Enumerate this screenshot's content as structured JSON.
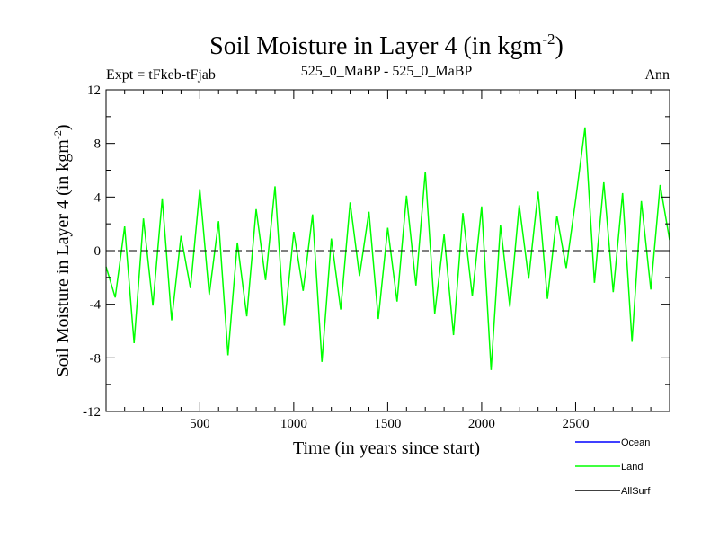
{
  "chart_data": {
    "type": "line",
    "title": "Soil Moisture in Layer 4 (in kgm",
    "title_superscript": "-2",
    "title_suffix": ")",
    "subtitle_left": "Expt = tFkeb-tFjab",
    "subtitle_center": "525_0_MaBP - 525_0_MaBP",
    "subtitle_right": "Ann",
    "xlabel": "Time (in years since start)",
    "ylabel": "Soil Moisture in Layer 4 (in kgm",
    "ylabel_superscript": "-2",
    "ylabel_suffix": ")",
    "xlim": [
      1,
      3000
    ],
    "ylim": [
      -12,
      12
    ],
    "x_ticks": [
      500,
      1000,
      1500,
      2000,
      2500
    ],
    "x_tick_labels": [
      "500",
      "1000",
      "1500",
      "2000",
      "2500"
    ],
    "y_ticks": [
      -12,
      -8,
      -4,
      0,
      4,
      8,
      12
    ],
    "y_tick_labels": [
      "-12",
      "-8",
      "-4",
      "0",
      "4",
      "8",
      "12"
    ],
    "zero_line": {
      "y": 0,
      "style": "dashed",
      "color": "#000000"
    },
    "legend_position": "bottom-right",
    "series": [
      {
        "name": "Ocean",
        "color": "#0000ff",
        "x": [],
        "values": []
      },
      {
        "name": "Land",
        "color": "#00ff00",
        "x": [
          1,
          50,
          100,
          150,
          200,
          250,
          300,
          350,
          400,
          450,
          500,
          550,
          600,
          650,
          700,
          750,
          800,
          850,
          900,
          950,
          1000,
          1050,
          1100,
          1150,
          1200,
          1250,
          1300,
          1350,
          1400,
          1450,
          1500,
          1550,
          1600,
          1650,
          1700,
          1750,
          1800,
          1850,
          1900,
          1950,
          2000,
          2050,
          2100,
          2150,
          2200,
          2250,
          2300,
          2350,
          2400,
          2450,
          2500,
          2550,
          2600,
          2650,
          2700,
          2750,
          2800,
          2850,
          2900,
          2950,
          3000
        ],
        "values": [
          -1.2,
          -3.5,
          1.8,
          -6.9,
          2.4,
          -4.1,
          3.9,
          -5.2,
          1.1,
          -2.8,
          4.6,
          -3.3,
          2.2,
          -7.8,
          0.6,
          -4.9,
          3.1,
          -2.2,
          4.8,
          -5.6,
          1.4,
          -3.0,
          2.7,
          -8.3,
          0.9,
          -4.4,
          3.6,
          -1.9,
          2.9,
          -5.1,
          1.7,
          -3.8,
          4.1,
          -2.6,
          5.9,
          -4.7,
          1.2,
          -6.3,
          2.8,
          -3.4,
          3.3,
          -8.9,
          1.9,
          -4.2,
          3.4,
          -2.1,
          4.4,
          -3.6,
          2.6,
          -1.3,
          3.8,
          9.2,
          -2.4,
          5.1,
          -3.1,
          4.3,
          -6.8,
          3.7,
          -2.9,
          4.9,
          0.8
        ]
      },
      {
        "name": "AllSurf",
        "color": "#000000",
        "x": [],
        "values": []
      }
    ]
  }
}
